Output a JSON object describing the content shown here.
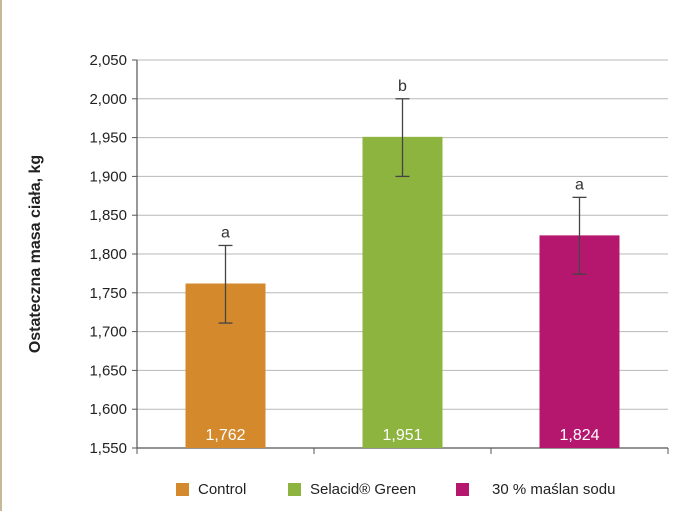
{
  "chart_data": {
    "type": "bar",
    "title": "",
    "xlabel": "",
    "ylabel": "Ostateczna masa ciała, kg",
    "ylim": [
      1.55,
      2.05
    ],
    "yticks": [
      "1,550",
      "1,600",
      "1,650",
      "1,700",
      "1,750",
      "1,800",
      "1,850",
      "1,900",
      "1,950",
      "2,000",
      "2,050"
    ],
    "grid": true,
    "legend_position": "bottom",
    "categories": [
      "Control",
      "Selacid® Green",
      "30  % maślan sodu"
    ],
    "values": [
      1.762,
      1.951,
      1.824
    ],
    "value_labels": [
      "1,762",
      "1,951",
      "1,824"
    ],
    "error_low": [
      1.711,
      1.9,
      1.774
    ],
    "error_high": [
      1.811,
      2.0,
      1.873
    ],
    "significance": [
      "a",
      "b",
      "a"
    ],
    "colors": [
      "#d48a2c",
      "#8db43f",
      "#b5176e"
    ],
    "legend": [
      "Control",
      "Selacid® Green",
      "30  % maślan sodu"
    ]
  }
}
